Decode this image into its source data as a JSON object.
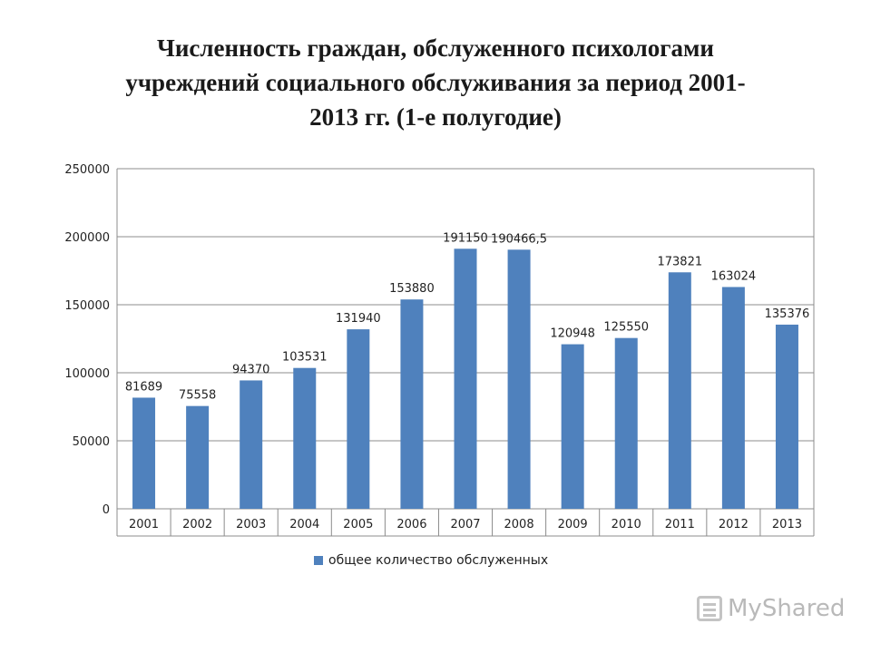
{
  "title": {
    "line1": "Численность граждан, обслуженного психологами",
    "line2": "учреждений социального обслуживания за период  2001-",
    "line3": "2013 гг. (1-е полугодие)"
  },
  "legend": {
    "label": "общее количество обслуженных"
  },
  "watermark": {
    "text": "MyShared",
    "icon": "presentation-board-icon"
  },
  "colors": {
    "bar": "#4f81bd",
    "grid": "#8c8c8c",
    "text": "#222222"
  },
  "chart_data": {
    "type": "bar",
    "categories": [
      "2001",
      "2002",
      "2003",
      "2004",
      "2005",
      "2006",
      "2007",
      "2008",
      "2009",
      "2010",
      "2011",
      "2012",
      "2013"
    ],
    "series": [
      {
        "name": "общее количество обслуженных",
        "values": [
          81689,
          75558,
          94370,
          103531,
          131940,
          153880,
          191150,
          190466.5,
          120948,
          125550,
          173821,
          163024,
          135376
        ],
        "labels": [
          "81689",
          "75558",
          "94370",
          "103531",
          "131940",
          "153880",
          "191150",
          "190466,5",
          "120948",
          "125550",
          "173821",
          "163024",
          "135376"
        ]
      }
    ],
    "yticks": [
      "0",
      "50000",
      "100000",
      "150000",
      "200000",
      "250000"
    ],
    "ylim": [
      0,
      250000
    ],
    "grid": true,
    "legend_position": "bottom"
  }
}
